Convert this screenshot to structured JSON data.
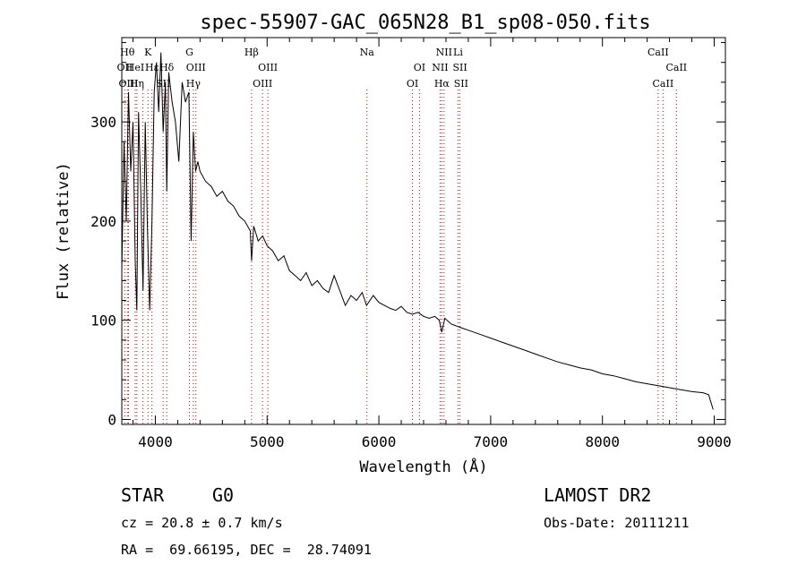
{
  "chart_data": {
    "type": "line",
    "title": "spec-55907-GAC_065N28_B1_sp08-050.fits",
    "xlabel": "Wavelength (Å)",
    "ylabel": "Flux (relative)",
    "xlim": [
      3700,
      9100
    ],
    "ylim": [
      -5,
      385
    ],
    "x_ticks": [
      4000,
      5000,
      6000,
      7000,
      8000,
      9000
    ],
    "y_ticks": [
      0,
      100,
      200,
      300
    ],
    "grid": false,
    "series": [
      {
        "x": [
          3700,
          3720,
          3740,
          3760,
          3780,
          3800,
          3820,
          3835,
          3850,
          3870,
          3890,
          3910,
          3930,
          3950,
          3970,
          3990,
          4010,
          4030,
          4050,
          4070,
          4090,
          4102,
          4120,
          4150,
          4180,
          4210,
          4240,
          4270,
          4300,
          4320,
          4340,
          4360,
          4380,
          4400,
          4450,
          4500,
          4550,
          4600,
          4650,
          4700,
          4750,
          4800,
          4850,
          4861,
          4880,
          4920,
          4960,
          5000,
          5050,
          5100,
          5150,
          5200,
          5250,
          5300,
          5350,
          5400,
          5450,
          5500,
          5550,
          5600,
          5650,
          5700,
          5750,
          5800,
          5850,
          5890,
          5950,
          6000,
          6050,
          6100,
          6150,
          6200,
          6250,
          6300,
          6350,
          6400,
          6450,
          6500,
          6540,
          6563,
          6590,
          6650,
          6700,
          6750,
          6800,
          6900,
          7000,
          7100,
          7200,
          7300,
          7400,
          7500,
          7600,
          7700,
          7800,
          7900,
          8000,
          8100,
          8200,
          8300,
          8400,
          8500,
          8600,
          8700,
          8800,
          8900,
          8950,
          8990
        ],
        "values": [
          150,
          280,
          200,
          330,
          250,
          300,
          160,
          110,
          310,
          230,
          130,
          300,
          190,
          110,
          200,
          330,
          360,
          310,
          370,
          290,
          340,
          230,
          350,
          320,
          300,
          260,
          340,
          320,
          330,
          180,
          290,
          250,
          260,
          250,
          240,
          235,
          225,
          230,
          220,
          215,
          205,
          200,
          190,
          160,
          195,
          180,
          185,
          175,
          170,
          160,
          165,
          150,
          145,
          140,
          148,
          135,
          140,
          132,
          128,
          145,
          130,
          115,
          125,
          120,
          128,
          115,
          125,
          118,
          115,
          112,
          110,
          114,
          108,
          106,
          108,
          104,
          102,
          104,
          100,
          88,
          102,
          96,
          94,
          92,
          90,
          86,
          82,
          78,
          74,
          70,
          66,
          62,
          58,
          55,
          52,
          50,
          46,
          44,
          41,
          38,
          36,
          34,
          32,
          30,
          28,
          27,
          25,
          10
        ]
      }
    ],
    "line_markers": [
      {
        "label": "Hθ",
        "x": 3750,
        "row": 0
      },
      {
        "label": "K",
        "x": 3934,
        "row": 0
      },
      {
        "label": "OII",
        "x": 3727,
        "row": 1
      },
      {
        "label": "HeI",
        "x": 3820,
        "row": 1
      },
      {
        "label": "Hε",
        "x": 3970,
        "row": 1
      },
      {
        "label": "OIII",
        "x": 3760,
        "row": 2
      },
      {
        "label": "Hη",
        "x": 3835,
        "row": 2
      },
      {
        "label": "SII",
        "x": 4070,
        "row": 2
      },
      {
        "label": "Hδ",
        "x": 4102,
        "row": 1
      },
      {
        "label": "G",
        "x": 4305,
        "row": 0
      },
      {
        "label": "OIII",
        "x": 4363,
        "row": 1
      },
      {
        "label": "Hγ",
        "x": 4340,
        "row": 2
      },
      {
        "label": "Hβ",
        "x": 4861,
        "row": 0
      },
      {
        "label": "OIII",
        "x": 5007,
        "row": 1
      },
      {
        "label": "OIII",
        "x": 4959,
        "row": 2
      },
      {
        "label": "Na",
        "x": 5893,
        "row": 0
      },
      {
        "label": "OI",
        "x": 6363,
        "row": 1
      },
      {
        "label": "OI",
        "x": 6300,
        "row": 2
      },
      {
        "label": "NII",
        "x": 6583,
        "row": 0
      },
      {
        "label": "Li",
        "x": 6708,
        "row": 0
      },
      {
        "label": "NII",
        "x": 6548,
        "row": 1
      },
      {
        "label": "SII",
        "x": 6725,
        "row": 1
      },
      {
        "label": "Hα",
        "x": 6563,
        "row": 2
      },
      {
        "label": "SII",
        "x": 6735,
        "row": 2
      },
      {
        "label": "CaII",
        "x": 8498,
        "row": 0
      },
      {
        "label": "CaII",
        "x": 8662,
        "row": 1
      },
      {
        "label": "CaII",
        "x": 8542,
        "row": 2
      }
    ],
    "dotted_lines_x": [
      3727,
      3750,
      3760,
      3820,
      3835,
      3889,
      3934,
      3970,
      4070,
      4102,
      4305,
      4340,
      4363,
      4861,
      4959,
      5007,
      5893,
      6300,
      6363,
      6548,
      6563,
      6583,
      6708,
      6725,
      8498,
      8542,
      8662
    ],
    "colors": {
      "spectrum": "#000000",
      "line_markers": "#cc0000",
      "frame": "#000000"
    }
  },
  "info": {
    "object_class": "STAR",
    "subclass": "G0",
    "survey": "LAMOST DR2",
    "cz": "cz = 20.8 ± 0.7 km/s",
    "obs_date": "Obs-Date: 20111211",
    "coords": "RA =  69.66195, DEC =  28.74091"
  }
}
